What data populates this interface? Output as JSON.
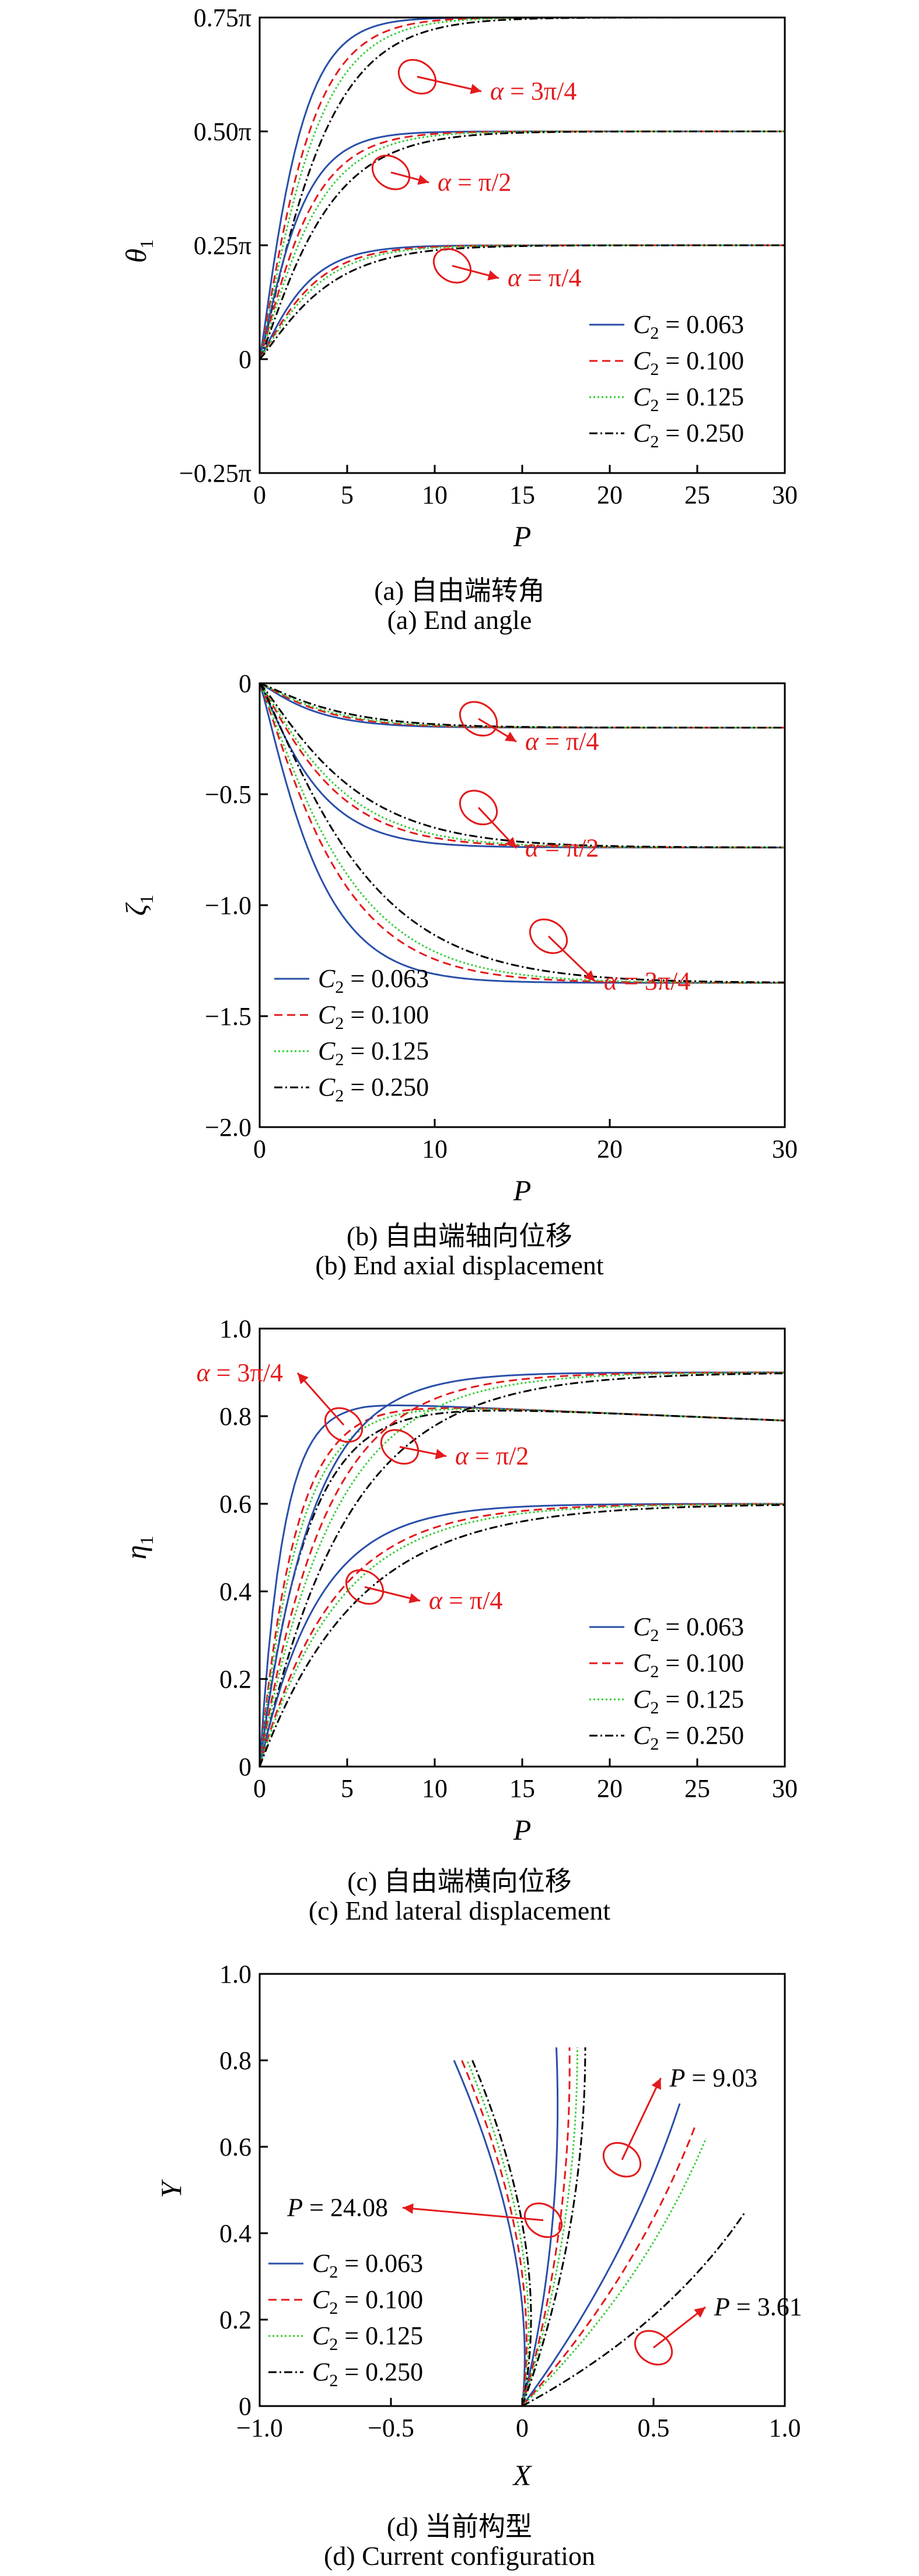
{
  "colors": {
    "c1": "#2a4fa8",
    "c2": "#e31a1c",
    "c3": "#33cc33",
    "c4": "#000000",
    "annot": "#e31a1c"
  },
  "chart_data": [
    {
      "id": "a",
      "type": "line",
      "xlabel": "P",
      "ylabel": "θ1",
      "xlim": [
        0,
        30
      ],
      "ylim": [
        -0.25,
        0.75
      ],
      "xticks": [
        0,
        5,
        10,
        15,
        20,
        25,
        30
      ],
      "yticks": [
        -0.25,
        0,
        0.25,
        0.5,
        0.75
      ],
      "xtick_labels": [
        "0",
        "5",
        "10",
        "15",
        "20",
        "25",
        "30"
      ],
      "ytick_labels": [
        "−0.25π",
        "0",
        "0.25π",
        "0.50π",
        "0.75π"
      ],
      "legend_position": "bottom-right",
      "caption_cn": "(a) 自由端转角",
      "caption_en": "(a) End angle",
      "annotations": [
        {
          "text": "α = 3π/4",
          "x": 9,
          "y": 0.62,
          "tx": 13,
          "ty": 0.57
        },
        {
          "text": "α = π/2",
          "x": 7.5,
          "y": 0.41,
          "tx": 10,
          "ty": 0.37
        },
        {
          "text": "α = π/4",
          "x": 11,
          "y": 0.205,
          "tx": 14,
          "ty": 0.16
        }
      ],
      "groups": [
        {
          "final": 0.75,
          "rates": [
            0.42,
            0.33,
            0.29,
            0.24
          ]
        },
        {
          "final": 0.5,
          "rates": [
            0.4,
            0.32,
            0.28,
            0.23
          ]
        },
        {
          "final": 0.25,
          "rates": [
            0.35,
            0.3,
            0.27,
            0.22
          ]
        }
      ]
    },
    {
      "id": "b",
      "type": "line",
      "xlabel": "P",
      "ylabel": "ζ1",
      "xlim": [
        0,
        30
      ],
      "ylim": [
        -2.0,
        0
      ],
      "xticks": [
        0,
        10,
        20,
        30
      ],
      "yticks": [
        -2.0,
        -1.5,
        -1.0,
        -0.5,
        0
      ],
      "xtick_labels": [
        "0",
        "10",
        "20",
        "30"
      ],
      "ytick_labels": [
        "−2.0",
        "−1.5",
        "−1.0",
        "−0.5",
        "0"
      ],
      "legend_position": "bottom-left",
      "caption_cn": "(b) 自由端轴向位移",
      "caption_en": "(b) End axial displacement",
      "annotations": [
        {
          "text": "α = π/4",
          "x": 12.5,
          "y": -0.16,
          "tx": 15,
          "ty": -0.3
        },
        {
          "text": "α = π/2",
          "x": 12.5,
          "y": -0.56,
          "tx": 15,
          "ty": -0.78
        },
        {
          "text": "α = 3π/4",
          "x": 16.5,
          "y": -1.14,
          "tx": 19.5,
          "ty": -1.38
        }
      ],
      "groups": [
        {
          "final": -0.2,
          "rates": [
            0.27,
            0.23,
            0.21,
            0.18
          ]
        },
        {
          "final": -0.74,
          "rates": [
            0.26,
            0.2,
            0.18,
            0.15
          ]
        },
        {
          "final": -1.35,
          "rates": [
            0.25,
            0.18,
            0.16,
            0.13
          ]
        }
      ]
    },
    {
      "id": "c",
      "type": "line",
      "xlabel": "P",
      "ylabel": "η1",
      "xlim": [
        0,
        30
      ],
      "ylim": [
        0,
        1.0
      ],
      "xticks": [
        0,
        5,
        10,
        15,
        20,
        25,
        30
      ],
      "yticks": [
        0,
        0.2,
        0.4,
        0.6,
        0.8,
        1.0
      ],
      "xtick_labels": [
        "0",
        "5",
        "10",
        "15",
        "20",
        "25",
        "30"
      ],
      "ytick_labels": [
        "0",
        "0.2",
        "0.4",
        "0.6",
        "0.8",
        "1.0"
      ],
      "legend_position": "bottom-right",
      "caption_cn": "(c) 自由端横向位移",
      "caption_en": "(c) End lateral displacement",
      "annotations": [
        {
          "text": "α = 3π/4",
          "x": 4.8,
          "y": 0.78,
          "tx": 1.5,
          "ty": 0.88
        },
        {
          "text": "α = π/2",
          "x": 8,
          "y": 0.73,
          "tx": 11,
          "ty": 0.69
        },
        {
          "text": "α = π/4",
          "x": 6,
          "y": 0.41,
          "tx": 9.5,
          "ty": 0.36
        }
      ],
      "groups": [
        {
          "kind": "peak",
          "peak": 0.83,
          "final": 0.79,
          "rates": [
            0.75,
            0.5,
            0.45,
            0.38
          ]
        },
        {
          "kind": "rise",
          "final": 0.9,
          "rates": [
            0.34,
            0.27,
            0.24,
            0.2
          ]
        },
        {
          "kind": "rise",
          "final": 0.6,
          "rates": [
            0.3,
            0.24,
            0.22,
            0.18
          ]
        }
      ]
    },
    {
      "id": "d",
      "type": "line",
      "xlabel": "X",
      "ylabel": "Y",
      "xlim": [
        -1.0,
        1.0
      ],
      "ylim": [
        0,
        1.0
      ],
      "xticks": [
        -1.0,
        -0.5,
        0,
        0.5,
        1.0
      ],
      "yticks": [
        0,
        0.2,
        0.4,
        0.6,
        0.8,
        1.0
      ],
      "xtick_labels": [
        "−1.0",
        "−0.5",
        "0",
        "0.5",
        "1.0"
      ],
      "ytick_labels": [
        "0",
        "0.2",
        "0.4",
        "0.6",
        "0.8",
        "1.0"
      ],
      "legend_position": "bottom-left",
      "caption_cn": "(d) 当前构型",
      "caption_en": "(d) Current configuration",
      "annotations": [
        {
          "text": "P = 9.03",
          "x": 0.38,
          "y": 0.57,
          "tx": 0.55,
          "ty": 0.74
        },
        {
          "text": "P = 24.08",
          "x": 0.08,
          "y": 0.43,
          "tx": -0.5,
          "ty": 0.44
        },
        {
          "text": "P = 3.61",
          "x": 0.5,
          "y": 0.135,
          "tx": 0.72,
          "ty": 0.21
        }
      ],
      "shape_groups": [
        [
          {
            "top": [
              -0.26,
              0.8
            ],
            "mid": [
              0.06,
              0.35
            ]
          },
          {
            "top": [
              -0.23,
              0.8
            ],
            "mid": [
              0.08,
              0.35
            ]
          },
          {
            "top": [
              -0.21,
              0.8
            ],
            "mid": [
              0.1,
              0.35
            ]
          },
          {
            "top": [
              -0.19,
              0.8
            ],
            "mid": [
              0.12,
              0.35
            ]
          }
        ],
        [
          {
            "top": [
              0.13,
              0.83
            ],
            "mid": [
              0.16,
              0.4
            ]
          },
          {
            "top": [
              0.18,
              0.83
            ],
            "mid": [
              0.19,
              0.4
            ]
          },
          {
            "top": [
              0.21,
              0.83
            ],
            "mid": [
              0.21,
              0.4
            ]
          },
          {
            "top": [
              0.24,
              0.83
            ],
            "mid": [
              0.24,
              0.4
            ]
          }
        ],
        [
          {
            "top": [
              0.6,
              0.7
            ],
            "mid": [
              0.4,
              0.33
            ]
          },
          {
            "top": [
              0.66,
              0.65
            ],
            "mid": [
              0.44,
              0.3
            ]
          },
          {
            "top": [
              0.7,
              0.62
            ],
            "mid": [
              0.47,
              0.28
            ]
          },
          {
            "top": [
              0.85,
              0.45
            ],
            "mid": [
              0.55,
              0.18
            ]
          }
        ]
      ]
    }
  ],
  "legend": [
    {
      "label": "C2 = 0.063",
      "base": "C",
      "sub": "2",
      "rest": " = 0.063",
      "color_key": "c1",
      "dash": ""
    },
    {
      "label": "C2 = 0.100",
      "base": "C",
      "sub": "2",
      "rest": " = 0.100",
      "color_key": "c2",
      "dash": "14,8"
    },
    {
      "label": "C2 = 0.125",
      "base": "C",
      "sub": "2",
      "rest": " = 0.125",
      "color_key": "c3",
      "dash": "3,4"
    },
    {
      "label": "C2 = 0.250",
      "base": "C",
      "sub": "2",
      "rest": " = 0.250",
      "color_key": "c4",
      "dash": "14,5,3,5"
    }
  ]
}
